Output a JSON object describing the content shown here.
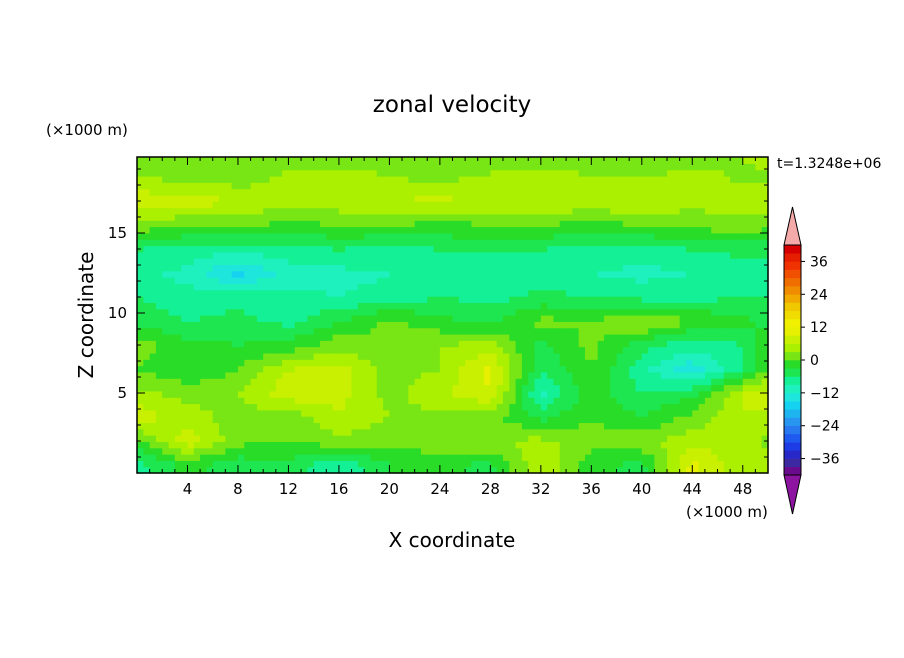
{
  "chart_data": {
    "type": "heatmap",
    "title": "zonal velocity",
    "xlabel": "X coordinate",
    "ylabel": "Z coordinate",
    "x_units": "(×1000 m)",
    "y_units": "(×1000 m)",
    "time_label": "t=1.3248e+06",
    "xlim": [
      0,
      50
    ],
    "ylim": [
      0,
      19.75
    ],
    "x_ticks": [
      4,
      8,
      12,
      16,
      20,
      24,
      28,
      32,
      36,
      40,
      44,
      48
    ],
    "y_ticks": [
      5,
      10,
      15
    ],
    "colorbar": {
      "levels": [
        -42,
        -39,
        -36,
        -33,
        -30,
        -27,
        -24,
        -21,
        -18,
        -15,
        -12,
        -9,
        -6,
        -3,
        0,
        3,
        6,
        9,
        12,
        15,
        18,
        21,
        24,
        27,
        30,
        33,
        36,
        39,
        42
      ],
      "tick_labels": [
        36,
        24,
        12,
        0,
        -12,
        -24,
        -36
      ],
      "colors": [
        "#6a0a8c",
        "#3c28a0",
        "#2828c8",
        "#1e3ce6",
        "#1e5af0",
        "#2878f0",
        "#2896f0",
        "#1eb4f0",
        "#14d2f0",
        "#1ee6dc",
        "#1ef0be",
        "#14f096",
        "#1ee650",
        "#28dc28",
        "#78e614",
        "#aaf000",
        "#c8f000",
        "#e6f000",
        "#f0f000",
        "#f0dc00",
        "#f0c800",
        "#f0aa00",
        "#f08c00",
        "#f06e00",
        "#f05000",
        "#f03200",
        "#e61e00",
        "#d70000"
      ],
      "under_color": "#8c14a0",
      "over_color": "#f5aaaa"
    },
    "grid": false,
    "field_samples_x": [
      0,
      4,
      8,
      12,
      16,
      20,
      24,
      28,
      32,
      36,
      40,
      44,
      48,
      50
    ],
    "field_samples_z": [
      0.5,
      2,
      3.5,
      5,
      6.5,
      8,
      9.5,
      11,
      12.5,
      14,
      15.5,
      17,
      18.5,
      19.5
    ],
    "field_values_rows_bottom_to_top": [
      [
        -7,
        -2,
        -5,
        -4,
        -9,
        -3,
        -2,
        -4,
        6,
        -2,
        -4,
        10,
        4,
        6
      ],
      [
        -1,
        8,
        1,
        0,
        2,
        1,
        2,
        3,
        4,
        1,
        2,
        5,
        4,
        2
      ],
      [
        8,
        4,
        2,
        1,
        6,
        3,
        2,
        1,
        -4,
        0,
        -3,
        1,
        6,
        5
      ],
      [
        4,
        2,
        3,
        8,
        7,
        2,
        5,
        9,
        -10,
        -1,
        -6,
        -4,
        6,
        8
      ],
      [
        0,
        -3,
        0,
        6,
        7,
        2,
        3,
        10,
        -6,
        0,
        -8,
        -14,
        -6,
        0
      ],
      [
        2,
        -2,
        -3,
        -2,
        2,
        0,
        3,
        4,
        -4,
        1,
        -5,
        -8,
        -6,
        0
      ],
      [
        -4,
        -6,
        -5,
        -7,
        -3,
        1,
        -2,
        -4,
        1,
        0,
        4,
        0,
        -2,
        -4
      ],
      [
        -6,
        -8,
        -7,
        -8,
        -9,
        -8,
        -6,
        -7,
        -5,
        -6,
        -7,
        -7,
        -6,
        -6
      ],
      [
        -8,
        -10,
        -16,
        -11,
        -10,
        -9,
        -8,
        -9,
        -8,
        -9,
        -10,
        -9,
        -8,
        -8
      ],
      [
        -6,
        -7,
        -8,
        -7,
        -6,
        -7,
        -6,
        -5,
        -6,
        -7,
        -7,
        -6,
        -5,
        -5
      ],
      [
        2,
        0,
        1,
        -1,
        0,
        0,
        -1,
        0,
        0,
        -1,
        0,
        1,
        2,
        1
      ],
      [
        8,
        8,
        6,
        4,
        5,
        6,
        7,
        5,
        6,
        5,
        6,
        4,
        5,
        6
      ],
      [
        3,
        2,
        1,
        4,
        6,
        3,
        2,
        4,
        5,
        3,
        3,
        5,
        2,
        2
      ],
      [
        0,
        1,
        0,
        2,
        0,
        1,
        1,
        0,
        2,
        1,
        0,
        1,
        3,
        4
      ]
    ]
  }
}
